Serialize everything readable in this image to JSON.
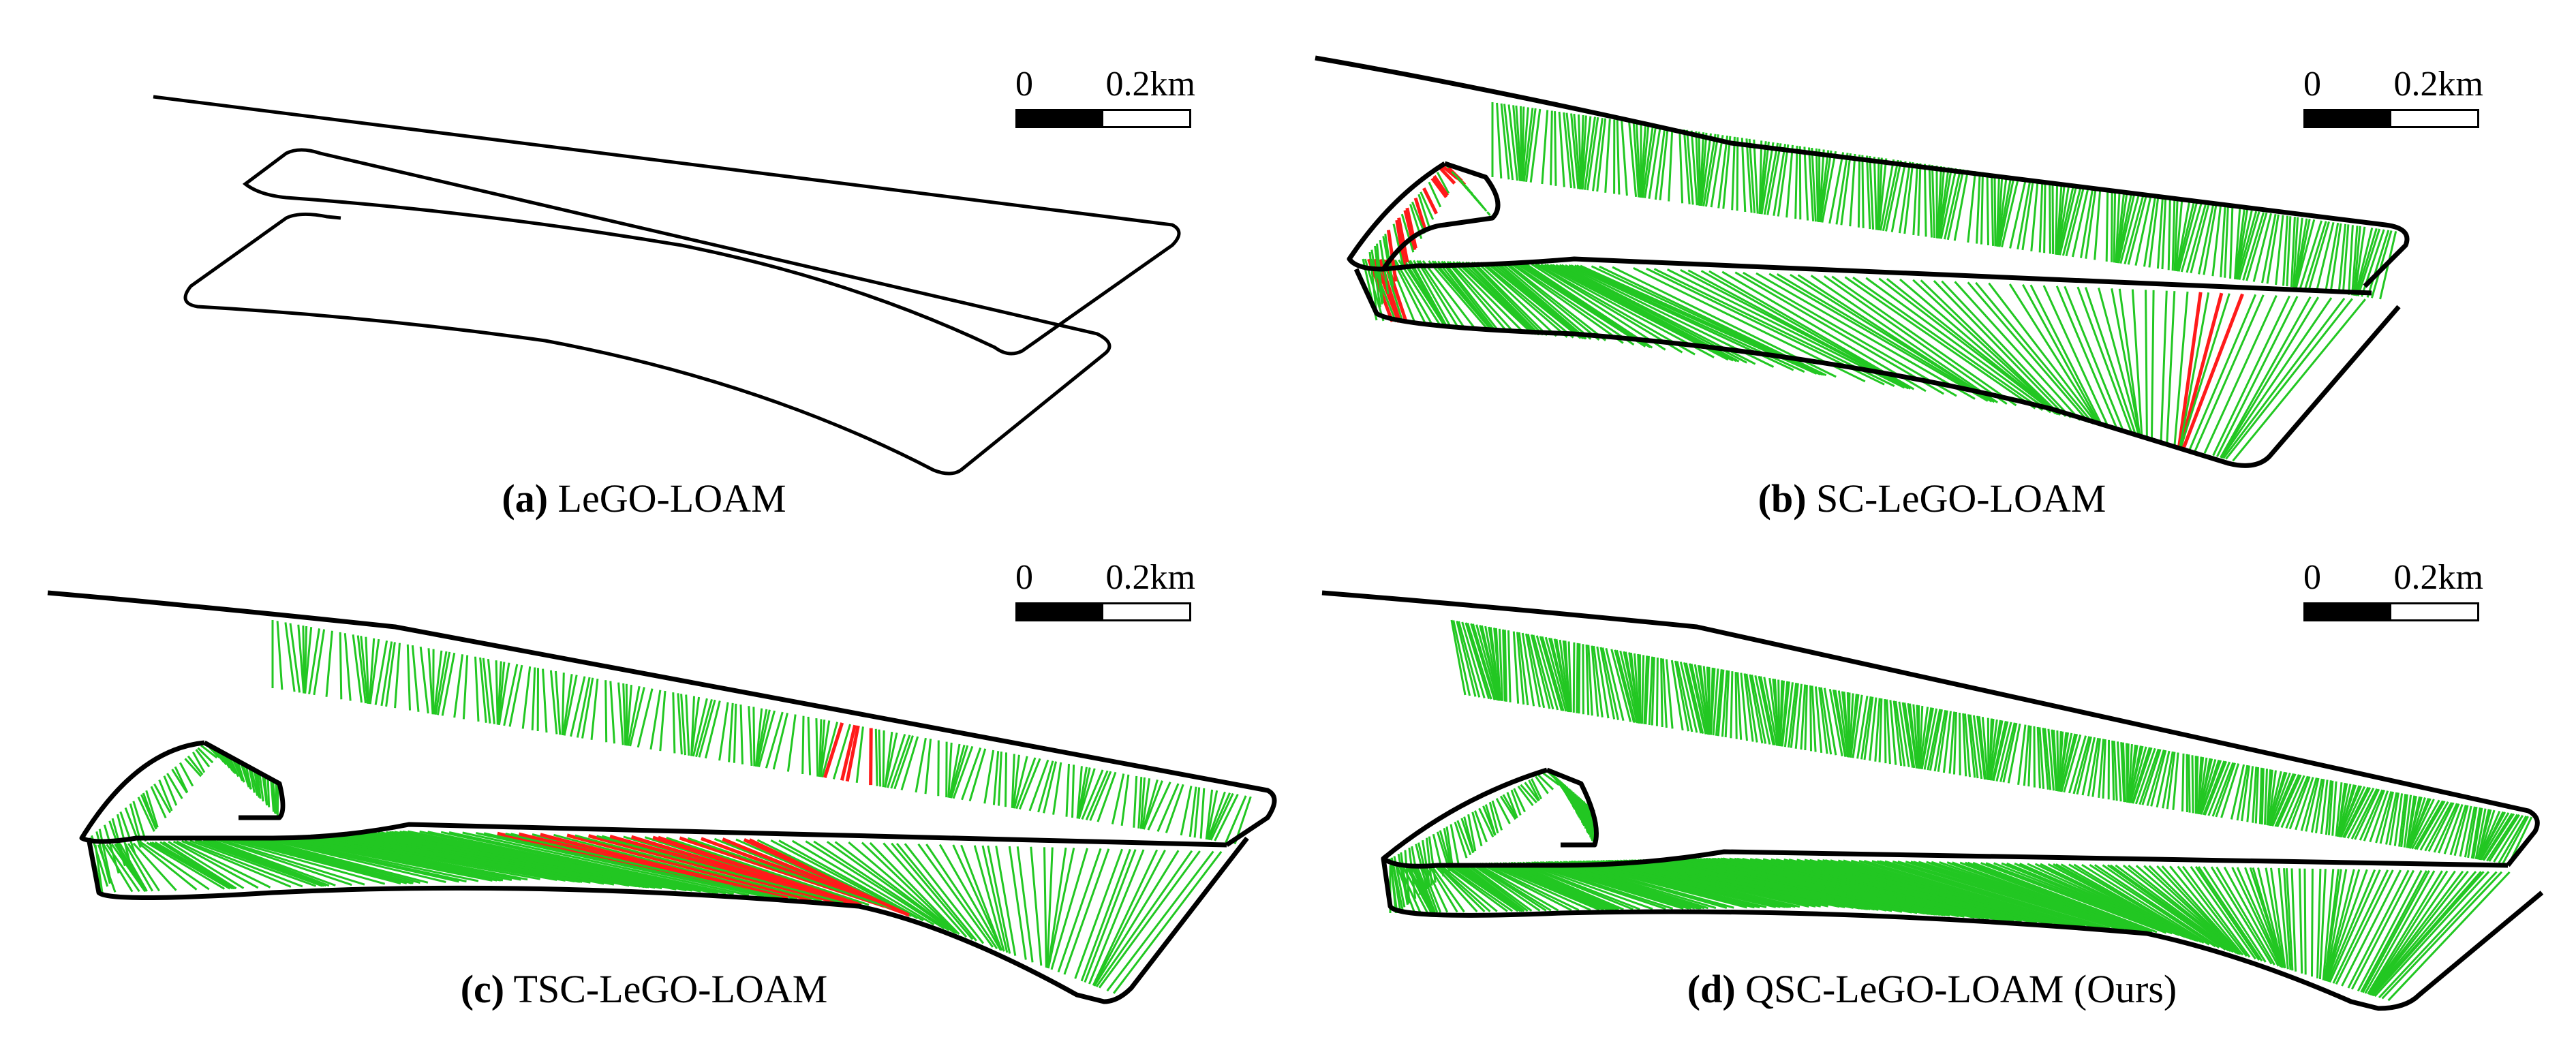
{
  "figure": {
    "panels": [
      {
        "tag": "(a)",
        "title": "LeGO-LOAM",
        "has_loops": false
      },
      {
        "tag": "(b)",
        "title": "SC-LeGO-LOAM",
        "has_loops": true
      },
      {
        "tag": "(c)",
        "title": "TSC-LeGO-LOAM",
        "has_loops": true
      },
      {
        "tag": "(d)",
        "title": "QSC-LeGO-LOAM (Ours)",
        "has_loops": true
      }
    ],
    "scale": {
      "label_start": "0",
      "label_end": "0.2km"
    },
    "colors": {
      "trajectory": "#000000",
      "true_loop": "#22c722",
      "false_loop": "#ff1a1a"
    }
  }
}
